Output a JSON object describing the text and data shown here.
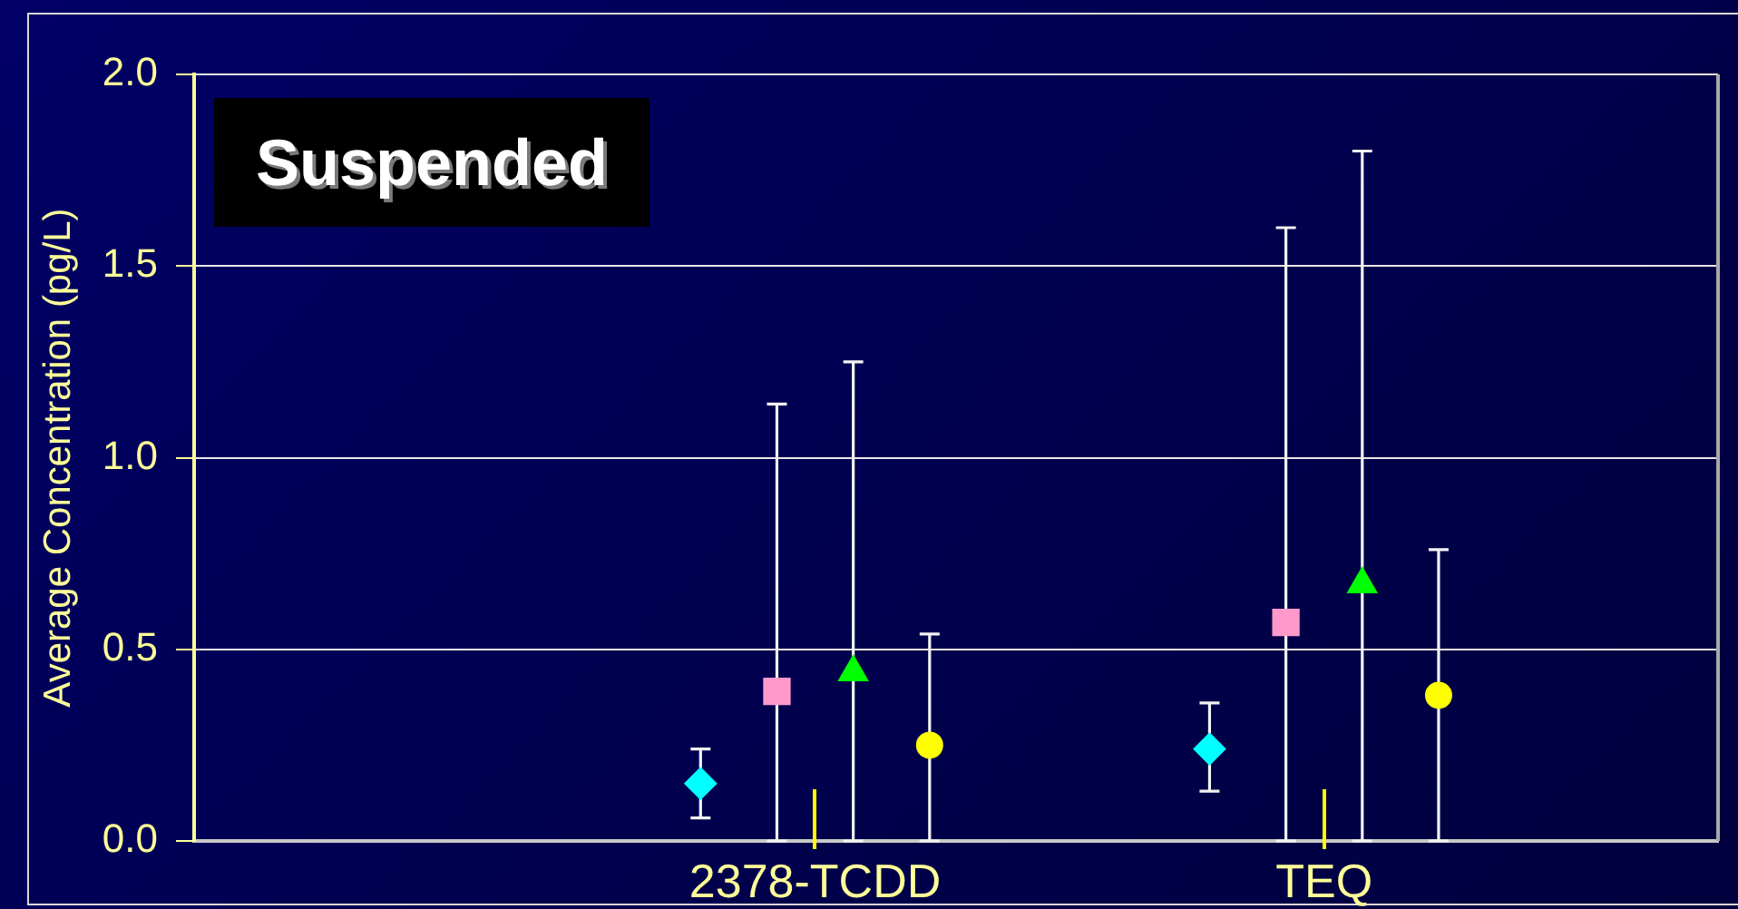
{
  "chart_data": {
    "type": "scatter",
    "ylabel": "Average Concentration (pg/L)",
    "annotations": [
      "Suspended"
    ],
    "categories": [
      "2378-TCDD",
      "TEQ"
    ],
    "ylim": [
      0,
      2
    ],
    "yticks": [
      {
        "value": 0,
        "label": "0.0"
      },
      {
        "value": 0.5,
        "label": "0.5"
      },
      {
        "value": 1,
        "label": "1.0"
      },
      {
        "value": 1.5,
        "label": "1.5"
      },
      {
        "value": 2,
        "label": "2.0"
      }
    ],
    "grid": "y",
    "legend": false,
    "series": [
      {
        "color": "#00ffff",
        "marker": "diamond",
        "values": [
          0.15,
          0.24
        ],
        "errors": [
          [
            0.06,
            0.24
          ],
          [
            0.13,
            0.36
          ]
        ]
      },
      {
        "color": "#ff99cc",
        "marker": "square",
        "values": [
          0.39,
          0.57
        ],
        "errors": [
          [
            0,
            1.14
          ],
          [
            0,
            1.6
          ]
        ]
      },
      {
        "color": "#00ff00",
        "marker": "triangle",
        "values": [
          0.44,
          0.67
        ],
        "errors": [
          [
            0,
            1.25
          ],
          [
            0,
            1.8
          ]
        ]
      },
      {
        "color": "#ffff00",
        "marker": "circle",
        "values": [
          0.25,
          0.38
        ],
        "errors": [
          [
            0,
            0.54
          ],
          [
            0,
            0.76
          ]
        ]
      }
    ]
  }
}
